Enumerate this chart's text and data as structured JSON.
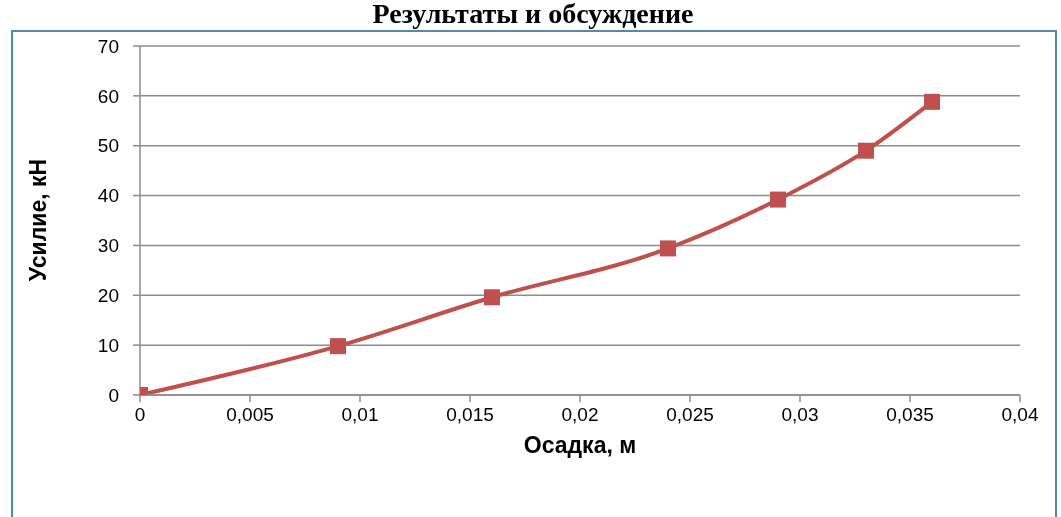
{
  "chart_data": {
    "type": "line",
    "title": "Результаты и обсуждение",
    "xlabel": "Осадка, м",
    "ylabel": "Усилие, кН",
    "x": [
      0,
      0.009,
      0.016,
      0.024,
      0.029,
      0.033,
      0.036
    ],
    "series": [
      {
        "color": "#c0504d",
        "values": [
          0,
          9.8,
          19.6,
          29.4,
          39.2,
          49,
          58.8
        ]
      }
    ],
    "xlim": [
      0,
      0.04
    ],
    "xticks": [
      0,
      {
        "value": 0.005,
        "label": "0,005"
      },
      {
        "value": 0.01,
        "label": "0,01"
      },
      {
        "value": 0.015,
        "label": "0,015"
      },
      {
        "value": 0.02,
        "label": "0,02"
      },
      {
        "value": 0.025,
        "label": "0,025"
      },
      {
        "value": 0.03,
        "label": "0,03"
      },
      {
        "value": 0.035,
        "label": "0,035"
      },
      {
        "value": 0.04,
        "label": "0,04"
      }
    ],
    "ylim": [
      0,
      70
    ],
    "yticks": [
      0,
      10,
      20,
      30,
      40,
      50,
      60,
      70
    ],
    "grid": "y",
    "marker": "square",
    "line_style": "solid"
  }
}
